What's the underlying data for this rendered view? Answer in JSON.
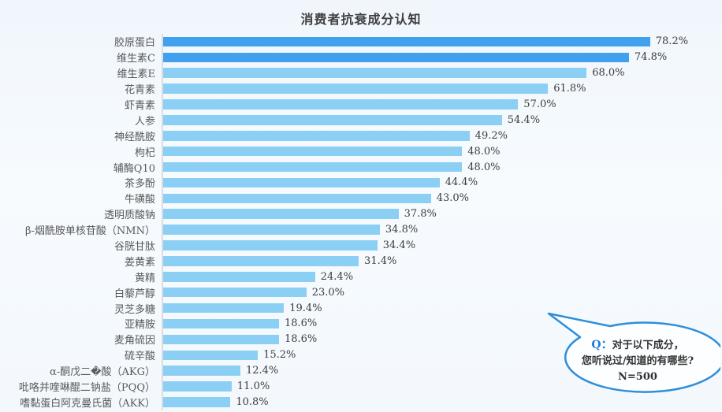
{
  "title": "消费者抗衰成分认知",
  "chart_data": {
    "type": "bar",
    "orientation": "horizontal",
    "title": "消费者抗衰成分认知",
    "xlim": [
      0,
      100
    ],
    "grid": false,
    "legend": "none",
    "categories": [
      "胶原蛋白",
      "维生素C",
      "维生素E",
      "花青素",
      "虾青素",
      "人参",
      "神经酰胺",
      "枸杞",
      "辅酶Q10",
      "茶多酚",
      "牛磺酸",
      "透明质酸钠",
      "β-烟酰胺单核苷酸（NMN）",
      "谷胱甘肽",
      "姜黄素",
      "黄精",
      "白藜芦醇",
      "灵芝多糖",
      "亚精胺",
      "麦角硫因",
      "硫辛酸",
      "α-酮戊二�酸（AKG）",
      "吡咯并喹啉醌二钠盐（PQQ）",
      "嗜黏蛋白阿克曼氏菌（AKK）"
    ],
    "values": [
      78.2,
      74.8,
      68.0,
      61.8,
      57.0,
      54.4,
      49.2,
      48.0,
      48.0,
      44.4,
      43.0,
      37.8,
      34.8,
      34.4,
      31.4,
      24.4,
      23.0,
      19.4,
      18.6,
      18.6,
      15.2,
      12.4,
      11.0,
      10.8
    ],
    "value_labels": [
      "78.2%",
      "74.8%",
      "68.0%",
      "61.8%",
      "57.0%",
      "54.4%",
      "49.2%",
      "48.0%",
      "48.0%",
      "44.4%",
      "43.0%",
      "37.8%",
      "34.8%",
      "34.4%",
      "31.4%",
      "24.4%",
      "23.0%",
      "19.4%",
      "18.6%",
      "18.6%",
      "15.2%",
      "12.4%",
      "11.0%",
      "10.8%"
    ],
    "colors": {
      "highlight_bar": "#42a1ef",
      "normal_bar": "#8ccff5",
      "highlight_count": 2,
      "axis_line": "#d9dde2"
    }
  },
  "callout": {
    "q_prefix": "Q：",
    "line1": "对于以下成分，",
    "line2": "您听说过/知道的有哪些?",
    "line3": "N=500",
    "border_color": "#2f8ed8"
  }
}
